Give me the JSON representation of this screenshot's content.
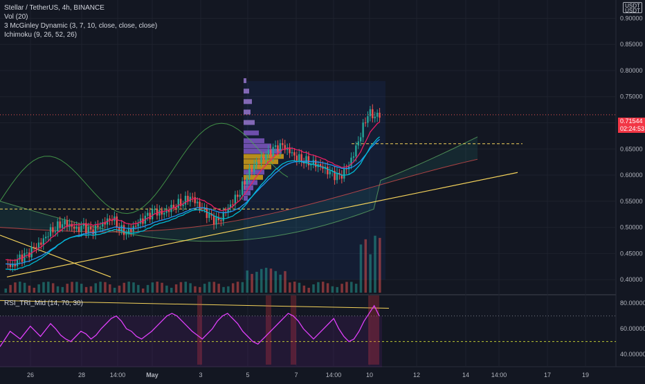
{
  "legend": {
    "symbol": "Stellar / TetherUS, 4h, BINANCE",
    "vol": "Vol (20)",
    "mcginley": "3 McGinley Dynamic (3, 7, 10, close, close, close)",
    "ichimoku": "Ichimoku (9, 26, 52, 26)",
    "rsi": "RSI_TRI_Mid (14, 70, 30)"
  },
  "currency_button": {
    "line1": "USDT",
    "line2": "USDT"
  },
  "current_price": {
    "value": "0.71544",
    "countdown": "02:24:53",
    "color": "#f23645"
  },
  "colors": {
    "background": "#131722",
    "up": "#26a69a",
    "down": "#ef5350",
    "rsi": "#e040fb",
    "trend": "#f5d35b"
  },
  "chart_data": [
    {
      "type": "candlestick",
      "title": "Stellar / TetherUS, 4h, BINANCE",
      "price_axis": {
        "ticks": [
          "0.90000",
          "0.85000",
          "0.80000",
          "0.75000",
          "0.70000",
          "0.65000",
          "0.60000",
          "0.55000",
          "0.50000",
          "0.45000",
          "0.40000"
        ],
        "ylim": [
          0.375,
          0.935
        ]
      },
      "time_axis": {
        "ticks": [
          "26",
          "28",
          "14:00",
          "May",
          "3",
          "5",
          "7",
          "14:00",
          "10",
          "12",
          "14",
          "14:00",
          "17",
          "19"
        ]
      },
      "close_path": [
        0.43,
        0.425,
        0.44,
        0.445,
        0.46,
        0.47,
        0.49,
        0.5,
        0.51,
        0.505,
        0.495,
        0.5,
        0.49,
        0.5,
        0.51,
        0.52,
        0.5,
        0.49,
        0.5,
        0.51,
        0.52,
        0.53,
        0.525,
        0.535,
        0.545,
        0.55,
        0.56,
        0.545,
        0.53,
        0.515,
        0.51,
        0.53,
        0.55,
        0.57,
        0.6,
        0.62,
        0.63,
        0.64,
        0.65,
        0.655,
        0.645,
        0.635,
        0.63,
        0.625,
        0.62,
        0.61,
        0.6,
        0.595,
        0.61,
        0.64,
        0.68,
        0.72,
        0.715
      ],
      "annotations": {
        "dashed_level_1": 0.535,
        "dashed_level_2": 0.66,
        "current_price_line": 0.71544
      }
    },
    {
      "type": "line",
      "title": "RSI_TRI_Mid (14, 70, 30)",
      "y_axis": {
        "ticks": [
          "80.00000",
          "60.00000",
          "40.00000"
        ],
        "ylim": [
          32,
          86
        ]
      },
      "overbought": 70,
      "midline": 50,
      "values": [
        46,
        52,
        58,
        55,
        52,
        57,
        62,
        58,
        54,
        59,
        64,
        60,
        55,
        52,
        50,
        54,
        58,
        56,
        52,
        55,
        60,
        64,
        68,
        70,
        66,
        60,
        58,
        54,
        52,
        55,
        58,
        62,
        66,
        70,
        72,
        70,
        66,
        62,
        58,
        55,
        52,
        56,
        60,
        66,
        70,
        72,
        68,
        64,
        58,
        54,
        50,
        48,
        52,
        56,
        60,
        64,
        68,
        72,
        70,
        66,
        60,
        56,
        52,
        56,
        60,
        64,
        68,
        60,
        54,
        50,
        52,
        58,
        66,
        72,
        78,
        70
      ]
    }
  ]
}
